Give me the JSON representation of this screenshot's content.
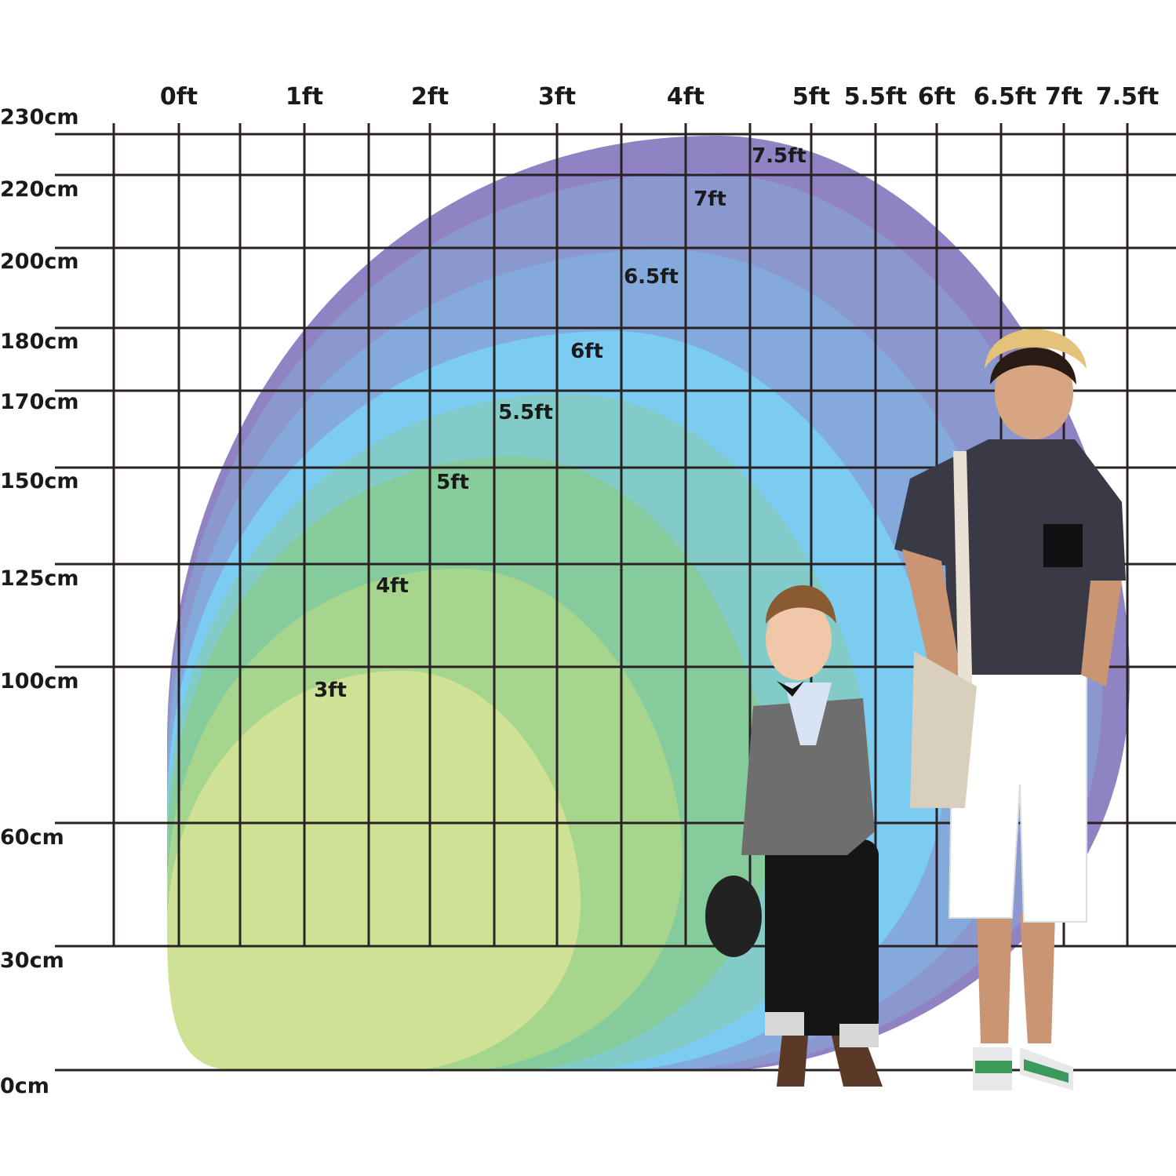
{
  "x_axis_labels": [
    "0ft",
    "1ft",
    "2ft",
    "3ft",
    "4ft",
    "5ft",
    "5.5ft",
    "6ft",
    "6.5ft",
    "7ft",
    "7.5ft"
  ],
  "y_axis_labels": [
    "230cm",
    "220cm",
    "200cm",
    "180cm",
    "170cm",
    "150cm",
    "125cm",
    "100cm",
    "60cm",
    "30cm",
    "0cm"
  ],
  "sizes": [
    {
      "label": "7.5ft",
      "color": "#8f83c3"
    },
    {
      "label": "7ft",
      "color": "#8b98cf"
    },
    {
      "label": "6.5ft",
      "color": "#84a9db"
    },
    {
      "label": "6ft",
      "color": "#7ccbf0"
    },
    {
      "label": "5.5ft",
      "color": "#82cbc8"
    },
    {
      "label": "5ft",
      "color": "#85cb9b"
    },
    {
      "label": "4ft",
      "color": "#a6d58e"
    },
    {
      "label": "3ft",
      "color": "#cfe194"
    }
  ],
  "figures": [
    {
      "name": "boy",
      "icon": "child-figure"
    },
    {
      "name": "man",
      "icon": "adult-figure"
    }
  ]
}
